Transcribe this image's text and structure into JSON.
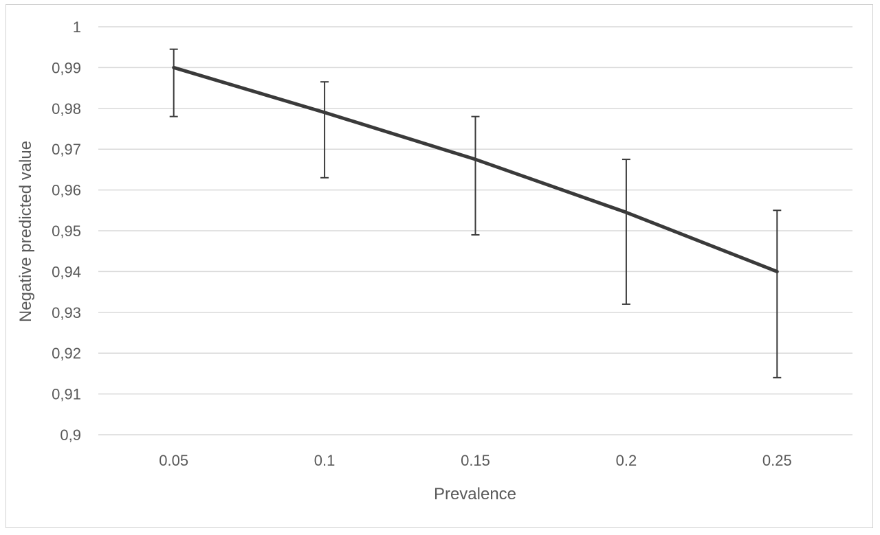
{
  "chart_data": {
    "type": "line",
    "title": "",
    "xlabel": "Prevalence",
    "ylabel": "Negative predicted value",
    "categories": [
      "0.05",
      "0.1",
      "0.15",
      "0.2",
      "0.25"
    ],
    "series": [
      {
        "values": [
          0.99,
          0.979,
          0.9675,
          0.9545,
          0.94
        ],
        "error_low": [
          0.978,
          0.963,
          0.949,
          0.932,
          0.914
        ],
        "error_high": [
          0.9945,
          0.9865,
          0.978,
          0.9675,
          0.955
        ]
      }
    ],
    "ylim": [
      0.9,
      1
    ],
    "y_ticks": [
      {
        "value": 0.9,
        "label": "0,9"
      },
      {
        "value": 0.91,
        "label": "0,91"
      },
      {
        "value": 0.92,
        "label": "0,92"
      },
      {
        "value": 0.93,
        "label": "0,93"
      },
      {
        "value": 0.94,
        "label": "0,94"
      },
      {
        "value": 0.95,
        "label": "0,95"
      },
      {
        "value": 0.96,
        "label": "0,96"
      },
      {
        "value": 0.97,
        "label": "0,97"
      },
      {
        "value": 0.98,
        "label": "0,98"
      },
      {
        "value": 0.99,
        "label": "0,99"
      },
      {
        "value": 1.0,
        "label": "1"
      }
    ],
    "grid": true,
    "legend": "none",
    "colors": {
      "line": "#3a3a3a",
      "grid": "#d9d9d9",
      "text": "#595959"
    }
  }
}
